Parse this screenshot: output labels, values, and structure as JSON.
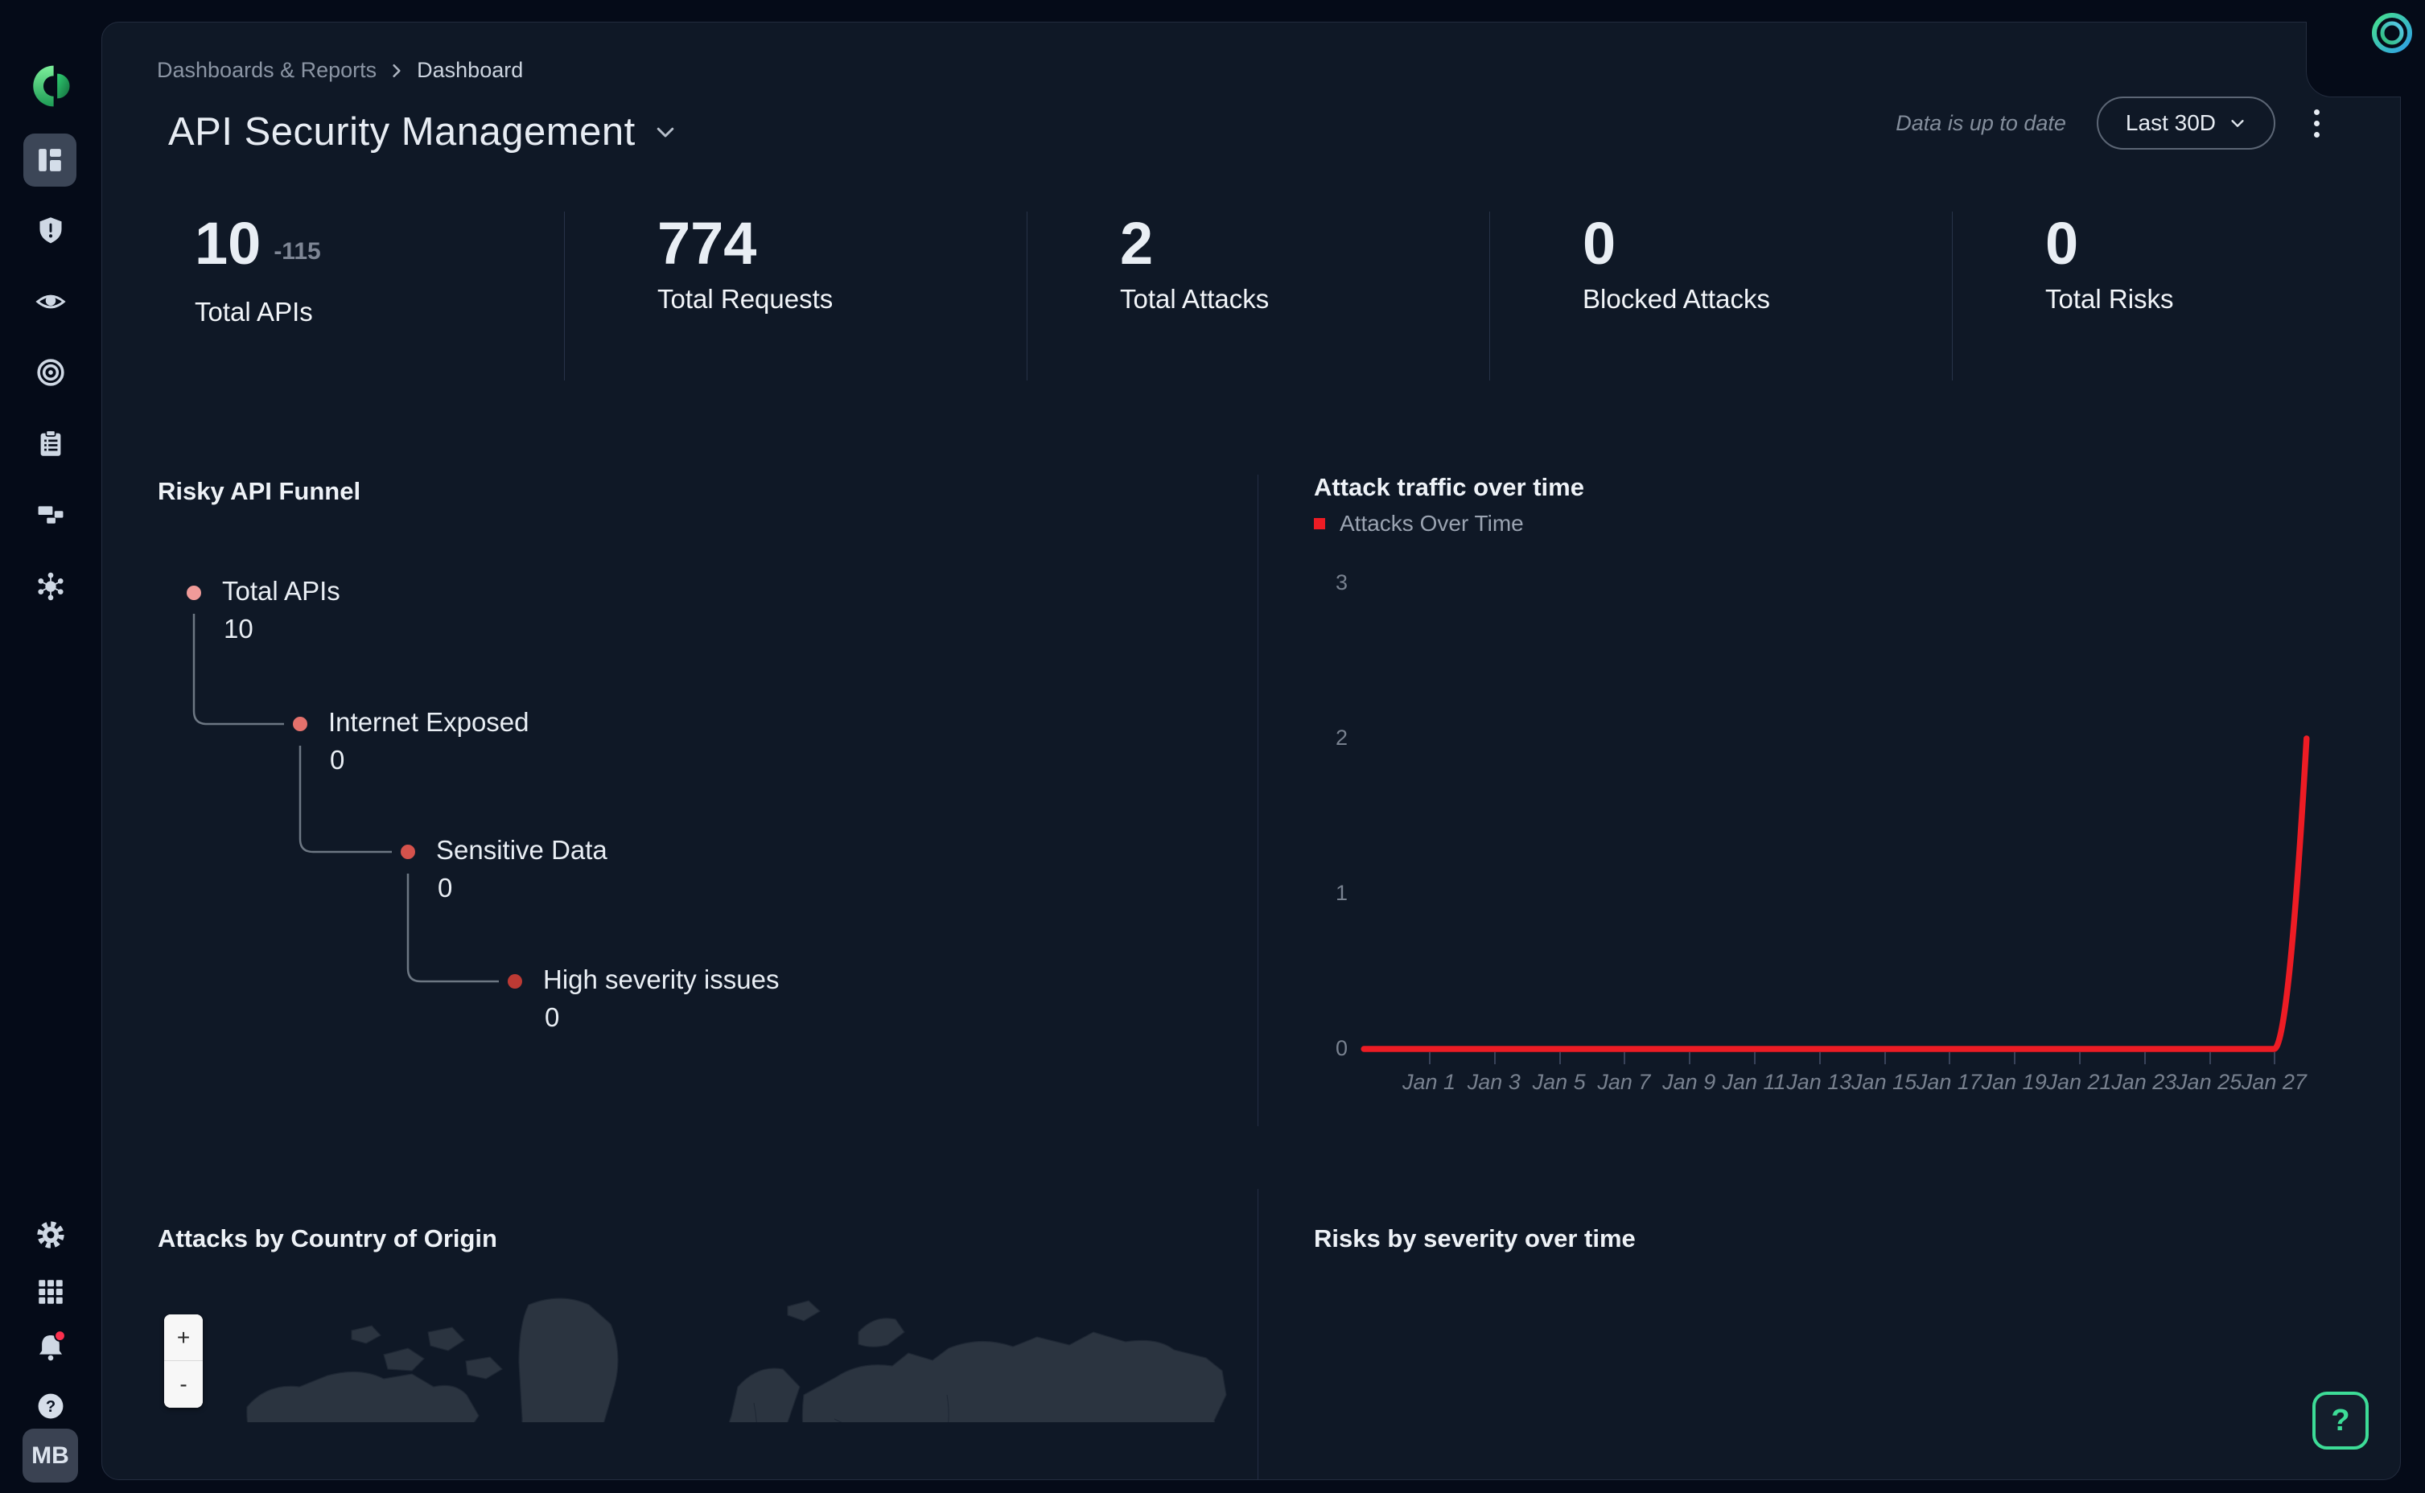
{
  "breadcrumb": {
    "items": [
      "Dashboards & Reports",
      "Dashboard"
    ]
  },
  "page": {
    "title": "API Security Management"
  },
  "header": {
    "status": "Data is up to date",
    "range_label": "Last 30D"
  },
  "stats": {
    "items": [
      {
        "value": "10",
        "delta": "-115",
        "label": "Total APIs"
      },
      {
        "value": "774",
        "delta": "",
        "label": "Total Requests"
      },
      {
        "value": "2",
        "delta": "",
        "label": "Total Attacks"
      },
      {
        "value": "0",
        "delta": "",
        "label": "Blocked Attacks"
      },
      {
        "value": "0",
        "delta": "",
        "label": "Total Risks"
      }
    ]
  },
  "funnel": {
    "title": "Risky API Funnel",
    "nodes": [
      {
        "label": "Total APIs",
        "value": "10",
        "color": "#f09b99"
      },
      {
        "label": "Internet Exposed",
        "value": "0",
        "color": "#e4716c"
      },
      {
        "label": "Sensitive Data",
        "value": "0",
        "color": "#d5524c"
      },
      {
        "label": "High severity issues",
        "value": "0",
        "color": "#bc3a34"
      }
    ]
  },
  "chart_data": {
    "type": "line",
    "title": "Attack traffic over time",
    "legend": [
      {
        "label": "Attacks Over Time",
        "color": "#ed1c24"
      }
    ],
    "legend_position": "top-left",
    "grid": false,
    "x_ticks": [
      "Jan 1",
      "Jan 3",
      "Jan 5",
      "Jan 7",
      "Jan 9",
      "Jan 11",
      "Jan 13",
      "Jan 15",
      "Jan 17",
      "Jan 19",
      "Jan 21",
      "Jan 23",
      "Jan 25",
      "Jan 27"
    ],
    "yticks": [
      0,
      1,
      2,
      3
    ],
    "ylim": [
      0,
      3
    ],
    "series": [
      {
        "name": "Attacks Over Time",
        "color": "#ed1c24",
        "points": [
          [
            "Dec 30",
            0
          ],
          [
            "Jan 1",
            0
          ],
          [
            "Jan 3",
            0
          ],
          [
            "Jan 5",
            0
          ],
          [
            "Jan 7",
            0
          ],
          [
            "Jan 9",
            0
          ],
          [
            "Jan 11",
            0
          ],
          [
            "Jan 13",
            0
          ],
          [
            "Jan 15",
            0
          ],
          [
            "Jan 17",
            0
          ],
          [
            "Jan 19",
            0
          ],
          [
            "Jan 21",
            0
          ],
          [
            "Jan 23",
            0
          ],
          [
            "Jan 25",
            0
          ],
          [
            "Jan 27",
            0
          ],
          [
            "Jan 28",
            2
          ]
        ]
      }
    ]
  },
  "map_panel": {
    "title": "Attacks by Country of Origin",
    "zoom_in": "+",
    "zoom_out": "-"
  },
  "risks_panel": {
    "title": "Risks by severity over time"
  },
  "help": {
    "label": "?"
  },
  "sidebar": {
    "avatar": "MB",
    "icons": [
      "brand-logo-icon",
      "layout-dashboard-icon",
      "shield-alert-icon",
      "eye-icon",
      "bullseye-icon",
      "clipboard-list-icon",
      "blocks-icon",
      "virus-icon",
      "gear-icon",
      "apps-grid-icon",
      "bell-icon",
      "help-circle-icon"
    ]
  },
  "colors": {
    "page_bg": "#050b18",
    "card_bg": "#0f1826",
    "accent_green": "#3ddc97",
    "attack_line_red": "#ed1c24",
    "bell_badge": "#fb2f4d",
    "map_land": "#2b3440"
  }
}
